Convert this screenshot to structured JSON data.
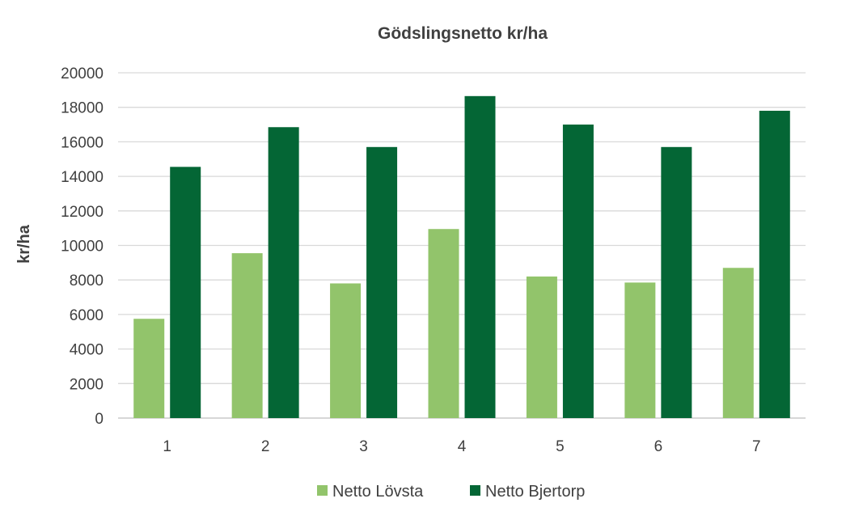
{
  "colors": {
    "series_1": "#92c46b",
    "series_2": "#046635",
    "grid": "#d9d9d9",
    "text": "#404040"
  },
  "chart_data": {
    "type": "bar",
    "title": "Gödslingsnetto kr/ha",
    "xlabel": "",
    "ylabel": "kr/ha",
    "categories": [
      "1",
      "2",
      "3",
      "4",
      "5",
      "6",
      "7"
    ],
    "series": [
      {
        "name": "Netto Lövsta",
        "values": [
          5750,
          9550,
          7800,
          10950,
          8200,
          7850,
          8700
        ]
      },
      {
        "name": "Netto Bjertorp",
        "values": [
          14550,
          16850,
          15700,
          18650,
          17000,
          15700,
          17800
        ]
      }
    ],
    "ylim": [
      0,
      20000
    ],
    "yticks": [
      0,
      2000,
      4000,
      6000,
      8000,
      10000,
      12000,
      14000,
      16000,
      18000,
      20000
    ],
    "grid": true,
    "legend": "bottom"
  }
}
